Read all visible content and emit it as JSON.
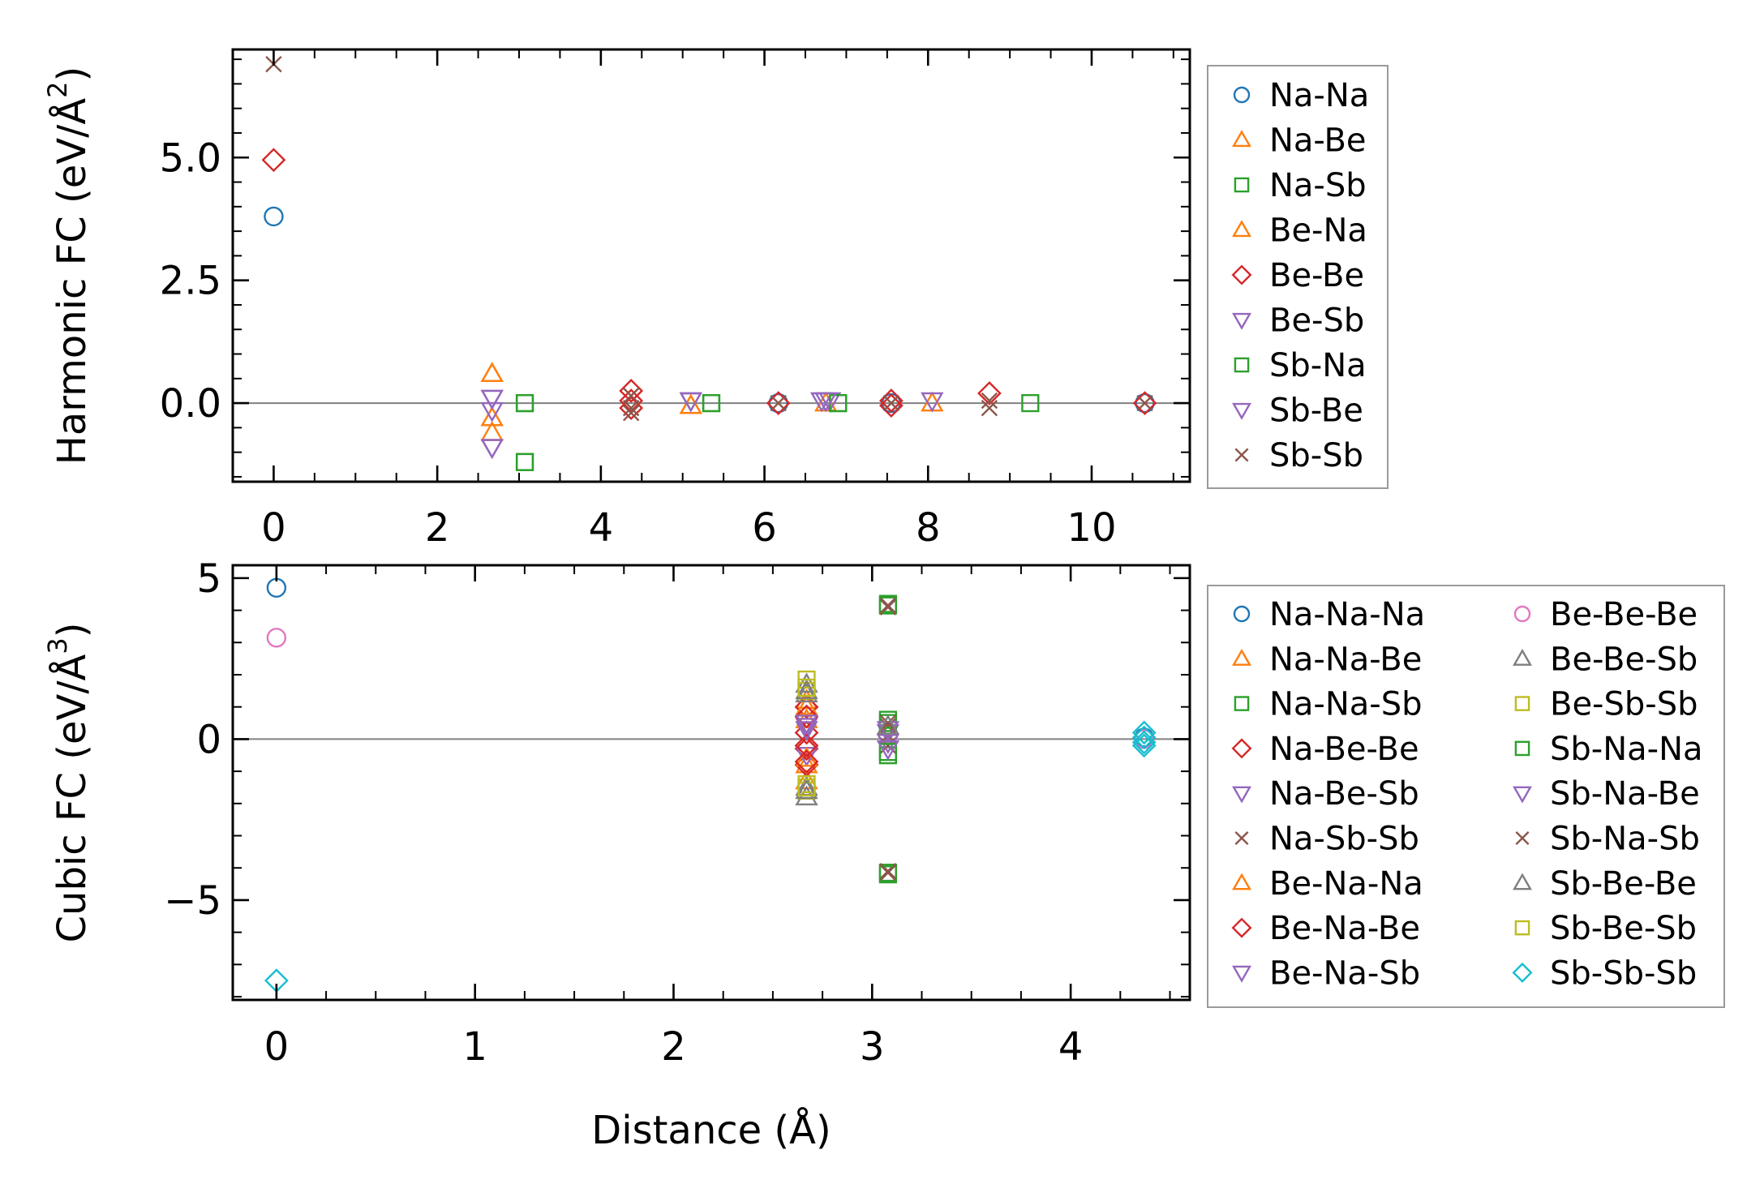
{
  "colors": {
    "blue": "#1f77b4",
    "orange": "#ff7f0e",
    "green": "#2ca02c",
    "red": "#d62728",
    "purple": "#9467bd",
    "brown": "#8c564b",
    "pink": "#e377c2",
    "gray": "#7f7f7f",
    "olive": "#bcbd22",
    "cyan": "#17becf"
  },
  "chart_data": [
    {
      "type": "scatter",
      "title": "",
      "xlabel": "",
      "ylabel": "Harmonic FC (eV/Å²)",
      "ylabel_parts": {
        "main": "Harmonic FC (eV/Å",
        "sup": "2",
        "tail": ")"
      },
      "xlim": [
        -0.5,
        11.2
      ],
      "ylim": [
        -1.6,
        7.2
      ],
      "xticks": [
        0,
        2,
        4,
        6,
        8,
        10
      ],
      "xtick_labels": [
        "0",
        "2",
        "4",
        "6",
        "8",
        "10"
      ],
      "yticks": [
        0.0,
        2.5,
        5.0
      ],
      "ytick_labels": [
        "0.0",
        "2.5",
        "5.0"
      ],
      "zero_line": true,
      "legend": {
        "position": "outside-right",
        "columns": 1
      },
      "series": [
        {
          "name": "Na-Na",
          "marker": "circle",
          "color": "#1f77b4",
          "points": [
            [
              0,
              3.8
            ],
            [
              6.17,
              0.0
            ],
            [
              7.55,
              0.0
            ],
            [
              10.65,
              0.0
            ]
          ]
        },
        {
          "name": "Na-Be",
          "marker": "triangle-up",
          "color": "#ff7f0e",
          "points": [
            [
              2.67,
              0.6
            ],
            [
              2.67,
              -0.3
            ],
            [
              2.67,
              -0.6
            ],
            [
              5.1,
              -0.05
            ],
            [
              6.75,
              0.0
            ],
            [
              8.05,
              0.0
            ]
          ]
        },
        {
          "name": "Na-Sb",
          "marker": "square",
          "color": "#2ca02c",
          "points": [
            [
              3.07,
              0.0
            ],
            [
              3.07,
              -1.2
            ],
            [
              5.35,
              0.0
            ],
            [
              6.9,
              0.0
            ],
            [
              9.25,
              0.0
            ]
          ]
        },
        {
          "name": "Be-Na",
          "marker": "triangle-up",
          "color": "#ff7f0e",
          "points": [
            [
              2.67,
              0.6
            ],
            [
              2.67,
              -0.3
            ],
            [
              5.1,
              -0.05
            ]
          ]
        },
        {
          "name": "Be-Be",
          "marker": "diamond",
          "color": "#d62728",
          "points": [
            [
              0,
              4.95
            ],
            [
              4.37,
              0.25
            ],
            [
              4.37,
              0.05
            ],
            [
              4.37,
              -0.1
            ],
            [
              6.17,
              0.0
            ],
            [
              7.55,
              0.05
            ],
            [
              7.55,
              -0.05
            ],
            [
              8.75,
              0.2
            ],
            [
              10.65,
              0.0
            ]
          ]
        },
        {
          "name": "Be-Sb",
          "marker": "triangle-down",
          "color": "#9467bd",
          "points": [
            [
              2.67,
              0.1
            ],
            [
              2.67,
              -0.15
            ],
            [
              2.67,
              -0.9
            ],
            [
              5.1,
              0.05
            ],
            [
              6.7,
              0.05
            ],
            [
              6.8,
              0.05
            ],
            [
              8.05,
              0.05
            ]
          ]
        },
        {
          "name": "Sb-Na",
          "marker": "square",
          "color": "#2ca02c",
          "points": [
            [
              3.07,
              0.0
            ],
            [
              3.07,
              -1.2
            ],
            [
              5.35,
              0.0
            ],
            [
              6.9,
              0.0
            ]
          ]
        },
        {
          "name": "Sb-Be",
          "marker": "triangle-down",
          "color": "#9467bd",
          "points": [
            [
              2.67,
              0.1
            ],
            [
              2.67,
              -0.9
            ],
            [
              5.1,
              0.05
            ],
            [
              6.75,
              0.05
            ]
          ]
        },
        {
          "name": "Sb-Sb",
          "marker": "x",
          "color": "#8c564b",
          "points": [
            [
              0,
              6.9
            ],
            [
              4.37,
              0.15
            ],
            [
              4.37,
              -0.1
            ],
            [
              4.37,
              -0.2
            ],
            [
              6.17,
              0.0
            ],
            [
              7.55,
              0.0
            ],
            [
              8.75,
              0.05
            ],
            [
              8.75,
              -0.1
            ],
            [
              10.65,
              0.0
            ]
          ]
        }
      ]
    },
    {
      "type": "scatter",
      "title": "",
      "xlabel": "Distance (Å)",
      "ylabel": "Cubic FC (eV/Å³)",
      "ylabel_parts": {
        "main": "Cubic FC (eV/Å",
        "sup": "3",
        "tail": ")"
      },
      "xlim": [
        -0.22,
        4.6
      ],
      "ylim": [
        -8.1,
        5.4
      ],
      "xticks": [
        0,
        1,
        2,
        3,
        4
      ],
      "xtick_labels": [
        "0",
        "1",
        "2",
        "3",
        "4"
      ],
      "yticks": [
        -5,
        0,
        5
      ],
      "ytick_labels": [
        "−5",
        "0",
        "5"
      ],
      "zero_line": true,
      "legend": {
        "position": "outside-right",
        "columns": 2
      },
      "series": [
        {
          "name": "Na-Na-Na",
          "marker": "circle",
          "color": "#1f77b4",
          "points": [
            [
              0,
              4.7
            ],
            [
              4.37,
              0.05
            ]
          ]
        },
        {
          "name": "Na-Na-Be",
          "marker": "triangle-up",
          "color": "#ff7f0e",
          "points": [
            [
              2.67,
              1.2
            ],
            [
              2.67,
              0.6
            ],
            [
              2.67,
              -0.8
            ],
            [
              2.67,
              -1.3
            ]
          ]
        },
        {
          "name": "Na-Na-Sb",
          "marker": "square",
          "color": "#2ca02c",
          "points": [
            [
              3.08,
              4.15
            ],
            [
              3.08,
              0.5
            ],
            [
              3.08,
              -0.5
            ],
            [
              3.08,
              -4.15
            ]
          ]
        },
        {
          "name": "Na-Be-Be",
          "marker": "diamond",
          "color": "#d62728",
          "points": [
            [
              2.67,
              1.0
            ],
            [
              2.67,
              0.2
            ],
            [
              2.67,
              -0.3
            ],
            [
              2.67,
              -0.8
            ]
          ]
        },
        {
          "name": "Na-Be-Sb",
          "marker": "triangle-down",
          "color": "#9467bd",
          "points": [
            [
              2.67,
              0.4
            ],
            [
              2.67,
              -0.5
            ],
            [
              3.08,
              0.2
            ]
          ]
        },
        {
          "name": "Na-Sb-Sb",
          "marker": "x",
          "color": "#8c564b",
          "points": [
            [
              3.08,
              4.1
            ],
            [
              3.08,
              0.4
            ],
            [
              3.08,
              0.1
            ],
            [
              3.08,
              -0.2
            ],
            [
              3.08,
              -4.1
            ]
          ]
        },
        {
          "name": "Be-Na-Na",
          "marker": "triangle-up",
          "color": "#ff7f0e",
          "points": [
            [
              2.67,
              1.0
            ],
            [
              2.67,
              -0.6
            ]
          ]
        },
        {
          "name": "Be-Na-Be",
          "marker": "diamond",
          "color": "#d62728",
          "points": [
            [
              2.67,
              0.7
            ],
            [
              2.67,
              -0.2
            ],
            [
              2.67,
              -0.7
            ]
          ]
        },
        {
          "name": "Be-Na-Sb",
          "marker": "triangle-down",
          "color": "#9467bd",
          "points": [
            [
              2.67,
              0.3
            ],
            [
              3.08,
              -0.1
            ]
          ]
        },
        {
          "name": "Be-Be-Be",
          "marker": "circle",
          "color": "#e377c2",
          "points": [
            [
              0,
              3.15
            ],
            [
              4.37,
              0.0
            ]
          ]
        },
        {
          "name": "Be-Be-Sb",
          "marker": "triangle-up",
          "color": "#7f7f7f",
          "points": [
            [
              2.67,
              1.7
            ],
            [
              2.67,
              1.4
            ],
            [
              2.67,
              -1.5
            ],
            [
              2.67,
              -1.8
            ]
          ]
        },
        {
          "name": "Be-Sb-Sb",
          "marker": "square",
          "color": "#bcbd22",
          "points": [
            [
              2.67,
              1.85
            ],
            [
              2.67,
              1.5
            ],
            [
              2.67,
              -1.4
            ],
            [
              2.67,
              -1.6
            ]
          ]
        },
        {
          "name": "Sb-Na-Na",
          "marker": "square",
          "color": "#2ca02c",
          "points": [
            [
              3.08,
              4.2
            ],
            [
              3.08,
              0.6
            ],
            [
              3.08,
              -0.4
            ],
            [
              3.08,
              -4.2
            ]
          ]
        },
        {
          "name": "Sb-Na-Be",
          "marker": "triangle-down",
          "color": "#9467bd",
          "points": [
            [
              2.67,
              0.5
            ],
            [
              3.08,
              0.3
            ],
            [
              3.08,
              -0.3
            ]
          ]
        },
        {
          "name": "Sb-Na-Sb",
          "marker": "x",
          "color": "#8c564b",
          "points": [
            [
              3.08,
              4.15
            ],
            [
              3.08,
              0.5
            ],
            [
              3.08,
              -4.15
            ]
          ]
        },
        {
          "name": "Sb-Be-Be",
          "marker": "triangle-up",
          "color": "#7f7f7f",
          "points": [
            [
              2.67,
              1.5
            ],
            [
              2.67,
              -1.6
            ],
            [
              3.08,
              0.4
            ]
          ]
        },
        {
          "name": "Sb-Be-Sb",
          "marker": "square",
          "color": "#bcbd22",
          "points": [
            [
              2.67,
              1.6
            ],
            [
              2.67,
              -1.5
            ]
          ]
        },
        {
          "name": "Sb-Sb-Sb",
          "marker": "diamond",
          "color": "#17becf",
          "points": [
            [
              0,
              -7.5
            ],
            [
              4.37,
              0.2
            ],
            [
              4.37,
              0.05
            ],
            [
              4.37,
              -0.1
            ],
            [
              4.37,
              -0.2
            ]
          ]
        }
      ]
    }
  ]
}
